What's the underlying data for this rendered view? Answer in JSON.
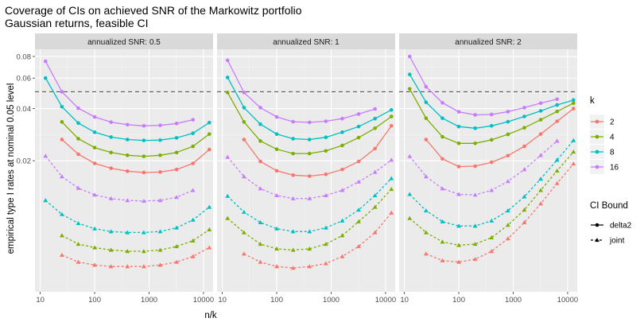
{
  "chart_data": {
    "type": "line",
    "title": "Coverage of CIs on achieved SNR of the Markowitz portfolio",
    "subtitle": "Gaussian returns, feasible CI",
    "xlabel": "n/k",
    "ylabel": "empirical type I rates at nominal 0.05 level",
    "x_scale": "log10",
    "y_scale": "log10",
    "xlim": [
      8,
      15000
    ],
    "ylim": [
      0.0035,
      0.088
    ],
    "x_ticks": [
      10,
      100,
      1000,
      10000
    ],
    "x_tick_labels": [
      "10",
      "100",
      "1000",
      "10000"
    ],
    "y_ticks": [
      0.02,
      0.04,
      0.06,
      0.08
    ],
    "y_tick_labels": [
      "0.02",
      "0.04",
      "0.06",
      "0.08"
    ],
    "reference_line": {
      "y": 0.05,
      "style": "dashed",
      "color": "#595959"
    },
    "legend": {
      "k_title": "k",
      "k_entries": [
        {
          "label": "2",
          "color": "#F8766D"
        },
        {
          "label": "4",
          "color": "#7CAE00"
        },
        {
          "label": "8",
          "color": "#00BFC4"
        },
        {
          "label": "16",
          "color": "#C77CFF"
        }
      ],
      "ci_title": "CI Bound",
      "ci_entries": [
        {
          "label": "delta2",
          "linetype": "solid",
          "shape": "circle"
        },
        {
          "label": "joint",
          "linetype": "dashed",
          "shape": "triangle"
        }
      ]
    },
    "facets": [
      {
        "label": "annualized SNR: 0.5",
        "series": [
          {
            "k": "2",
            "ci": "delta2",
            "x": [
              25,
              50,
              100,
              200,
              400,
              800,
              1600,
              3200,
              6400,
              12800
            ],
            "y": [
              0.0265,
              0.0218,
              0.0193,
              0.0181,
              0.0174,
              0.0171,
              0.0172,
              0.0178,
              0.0193,
              0.0232
            ]
          },
          {
            "k": "4",
            "ci": "delta2",
            "x": [
              25,
              50,
              100,
              200,
              400,
              800,
              1600,
              3200,
              6400,
              12800
            ],
            "y": [
              0.0335,
              0.0268,
              0.0238,
              0.0223,
              0.0215,
              0.0212,
              0.0215,
              0.0223,
              0.0242,
              0.0285
            ]
          },
          {
            "k": "8",
            "ci": "delta2",
            "x": [
              12.5,
              25,
              50,
              100,
              200,
              400,
              800,
              1600,
              3200,
              6400,
              12800
            ],
            "y": [
              0.06,
              0.041,
              0.033,
              0.0292,
              0.0274,
              0.0265,
              0.0262,
              0.0263,
              0.0271,
              0.0288,
              0.0332
            ]
          },
          {
            "k": "16",
            "ci": "delta2",
            "x": [
              12.5,
              25,
              50,
              100,
              200,
              400,
              800,
              1600,
              3200,
              6400
            ],
            "y": [
              0.075,
              0.05,
              0.0402,
              0.0358,
              0.0334,
              0.0323,
              0.0318,
              0.032,
              0.0328,
              0.0345
            ]
          },
          {
            "k": "2",
            "ci": "joint",
            "x": [
              25,
              50,
              100,
              200,
              400,
              800,
              1600,
              3200,
              6400,
              12800
            ],
            "y": [
              0.0057,
              0.0052,
              0.005,
              0.0049,
              0.0049,
              0.0049,
              0.005,
              0.0052,
              0.0056,
              0.0063
            ]
          },
          {
            "k": "4",
            "ci": "joint",
            "x": [
              25,
              50,
              100,
              200,
              400,
              800,
              1600,
              3200,
              6400,
              12800
            ],
            "y": [
              0.0074,
              0.0066,
              0.0063,
              0.0061,
              0.006,
              0.006,
              0.0061,
              0.0064,
              0.0069,
              0.008
            ]
          },
          {
            "k": "8",
            "ci": "joint",
            "x": [
              12.5,
              25,
              50,
              100,
              200,
              400,
              800,
              1600,
              3200,
              6400,
              12800
            ],
            "y": [
              0.0118,
              0.0098,
              0.0087,
              0.0081,
              0.0078,
              0.0077,
              0.0077,
              0.0078,
              0.0082,
              0.0091,
              0.0108
            ]
          },
          {
            "k": "16",
            "ci": "joint",
            "x": [
              12.5,
              25,
              50,
              100,
              200,
              400,
              800,
              1600,
              3200,
              6400
            ],
            "y": [
              0.0213,
              0.0162,
              0.0139,
              0.0127,
              0.0121,
              0.0118,
              0.0117,
              0.0118,
              0.0123,
              0.0135
            ]
          }
        ]
      },
      {
        "label": "annualized SNR: 1",
        "series": [
          {
            "k": "2",
            "ci": "delta2",
            "x": [
              25,
              50,
              100,
              200,
              400,
              800,
              1600,
              3200,
              6400,
              12800
            ],
            "y": [
              0.0265,
              0.0198,
              0.0175,
              0.0165,
              0.0163,
              0.0167,
              0.0178,
              0.0198,
              0.0235,
              0.0318
            ]
          },
          {
            "k": "4",
            "ci": "delta2",
            "x": [
              12.5,
              25,
              50,
              100,
              200,
              400,
              800,
              1600,
              3200,
              6400,
              12800
            ],
            "y": [
              0.0495,
              0.0335,
              0.026,
              0.0233,
              0.022,
              0.022,
              0.0228,
              0.0245,
              0.0272,
              0.0308,
              0.036
            ]
          },
          {
            "k": "8",
            "ci": "delta2",
            "x": [
              12.5,
              25,
              50,
              100,
              200,
              400,
              800,
              1600,
              3200,
              6400,
              12800
            ],
            "y": [
              0.0605,
              0.0405,
              0.0325,
              0.0285,
              0.0268,
              0.0265,
              0.0273,
              0.0292,
              0.0315,
              0.035,
              0.0393
            ]
          },
          {
            "k": "16",
            "ci": "delta2",
            "x": [
              12.5,
              25,
              50,
              100,
              200,
              400,
              800,
              1600,
              3200,
              6400
            ],
            "y": [
              0.076,
              0.0495,
              0.0405,
              0.0358,
              0.0336,
              0.0333,
              0.0338,
              0.035,
              0.0372,
              0.0398
            ]
          },
          {
            "k": "2",
            "ci": "joint",
            "x": [
              25,
              50,
              100,
              200,
              400,
              800,
              1600,
              3200,
              6400,
              12800
            ],
            "y": [
              0.0058,
              0.0052,
              0.0049,
              0.0048,
              0.0049,
              0.0051,
              0.0056,
              0.0064,
              0.0077,
              0.01
            ]
          },
          {
            "k": "4",
            "ci": "joint",
            "x": [
              12.5,
              25,
              50,
              100,
              200,
              400,
              800,
              1600,
              3200,
              6400,
              12800
            ],
            "y": [
              0.0093,
              0.0077,
              0.0066,
              0.0062,
              0.0061,
              0.0062,
              0.0066,
              0.0074,
              0.0089,
              0.0108,
              0.0137
            ]
          },
          {
            "k": "8",
            "ci": "joint",
            "x": [
              12.5,
              25,
              50,
              100,
              200,
              400,
              800,
              1600,
              3200,
              6400,
              12800
            ],
            "y": [
              0.0125,
              0.0101,
              0.0088,
              0.0081,
              0.0078,
              0.0078,
              0.0082,
              0.009,
              0.0104,
              0.0126,
              0.0158
            ]
          },
          {
            "k": "16",
            "ci": "joint",
            "x": [
              12.5,
              25,
              50,
              100,
              200,
              400,
              800,
              1600,
              3200,
              6400,
              12800
            ],
            "y": [
              0.021,
              0.0162,
              0.0138,
              0.0126,
              0.0121,
              0.0121,
              0.0126,
              0.0135,
              0.0151,
              0.0172,
              0.0202
            ]
          }
        ]
      },
      {
        "label": "annualized SNR: 2",
        "series": [
          {
            "k": "2",
            "ci": "delta2",
            "x": [
              25,
              50,
              100,
              200,
              400,
              800,
              1600,
              3200,
              6400,
              12800
            ],
            "y": [
              0.0265,
              0.0205,
              0.0185,
              0.0186,
              0.0196,
              0.0214,
              0.0242,
              0.0285,
              0.0338,
              0.04
            ]
          },
          {
            "k": "4",
            "ci": "delta2",
            "x": [
              12.5,
              25,
              50,
              100,
              200,
              400,
              800,
              1600,
              3200,
              6400,
              12800
            ],
            "y": [
              0.052,
              0.0352,
              0.0275,
              0.0252,
              0.0252,
              0.0264,
              0.0284,
              0.031,
              0.0345,
              0.0385,
              0.043
            ]
          },
          {
            "k": "8",
            "ci": "delta2",
            "x": [
              12.5,
              25,
              50,
              100,
              200,
              400,
              800,
              1600,
              3200,
              6400,
              12800
            ],
            "y": [
              0.063,
              0.0435,
              0.0352,
              0.0315,
              0.0308,
              0.0318,
              0.0336,
              0.036,
              0.0388,
              0.042,
              0.0448
            ]
          },
          {
            "k": "16",
            "ci": "delta2",
            "x": [
              12.5,
              25,
              50,
              100,
              200,
              400,
              800,
              1600,
              3200,
              6400
            ],
            "y": [
              0.08,
              0.0535,
              0.0432,
              0.0383,
              0.0368,
              0.037,
              0.0384,
              0.0405,
              0.043,
              0.0453
            ]
          },
          {
            "k": "2",
            "ci": "joint",
            "x": [
              25,
              50,
              100,
              200,
              400,
              800,
              1600,
              3200,
              6400,
              12800
            ],
            "y": [
              0.0058,
              0.0053,
              0.0052,
              0.0054,
              0.006,
              0.0071,
              0.0088,
              0.0113,
              0.0148,
              0.0192
            ]
          },
          {
            "k": "4",
            "ci": "joint",
            "x": [
              12.5,
              25,
              50,
              100,
              200,
              400,
              800,
              1600,
              3200,
              6400,
              12800
            ],
            "y": [
              0.0093,
              0.0077,
              0.0068,
              0.0065,
              0.0066,
              0.0072,
              0.0085,
              0.0104,
              0.0135,
              0.0175,
              0.0225
            ]
          },
          {
            "k": "8",
            "ci": "joint",
            "x": [
              12.5,
              25,
              50,
              100,
              200,
              400,
              800,
              1600,
              3200,
              6400,
              12800
            ],
            "y": [
              0.0128,
              0.0103,
              0.0089,
              0.0084,
              0.0084,
              0.009,
              0.0103,
              0.0124,
              0.0157,
              0.0202,
              0.0262
            ]
          },
          {
            "k": "16",
            "ci": "joint",
            "x": [
              12.5,
              25,
              50,
              100,
              200,
              400,
              800,
              1600,
              3200,
              6400
            ],
            "y": [
              0.0212,
              0.0162,
              0.0138,
              0.0128,
              0.0127,
              0.0135,
              0.0152,
              0.0178,
              0.0215,
              0.026
            ]
          }
        ]
      }
    ]
  }
}
